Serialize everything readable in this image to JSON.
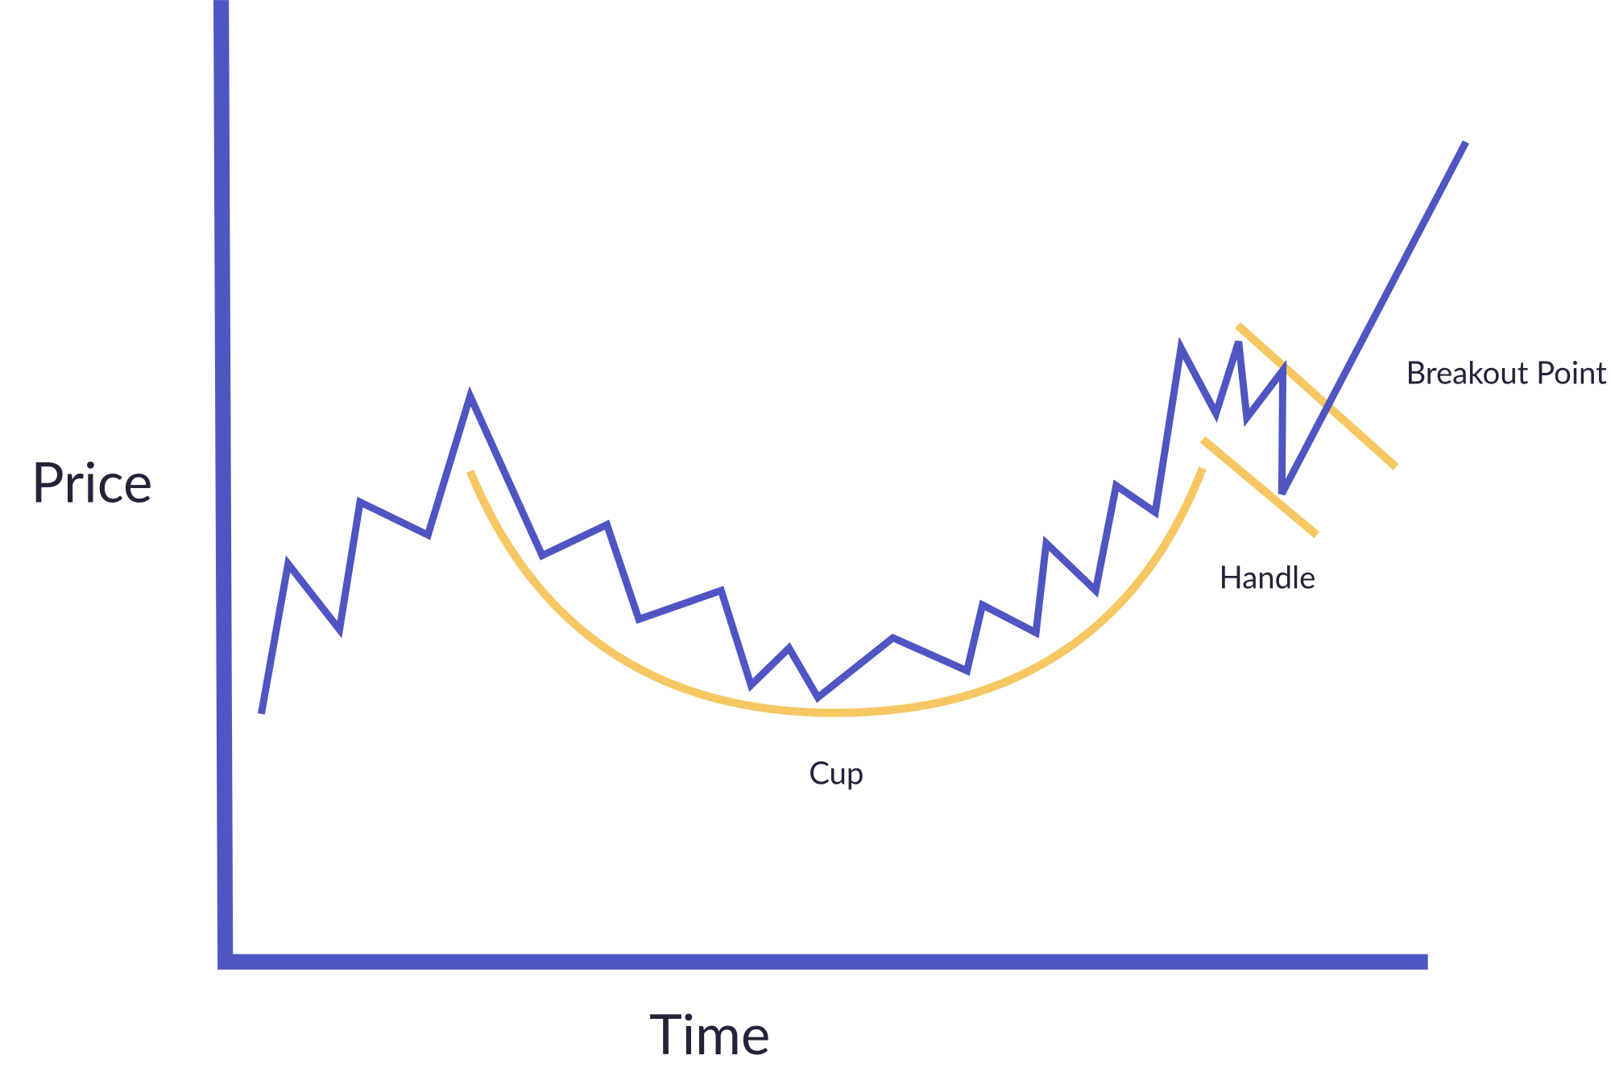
{
  "axes": {
    "y_label": "Price",
    "x_label": "Time"
  },
  "annotations": {
    "cup": "Cup",
    "handle": "Handle",
    "breakout": "Breakout Point"
  }
}
